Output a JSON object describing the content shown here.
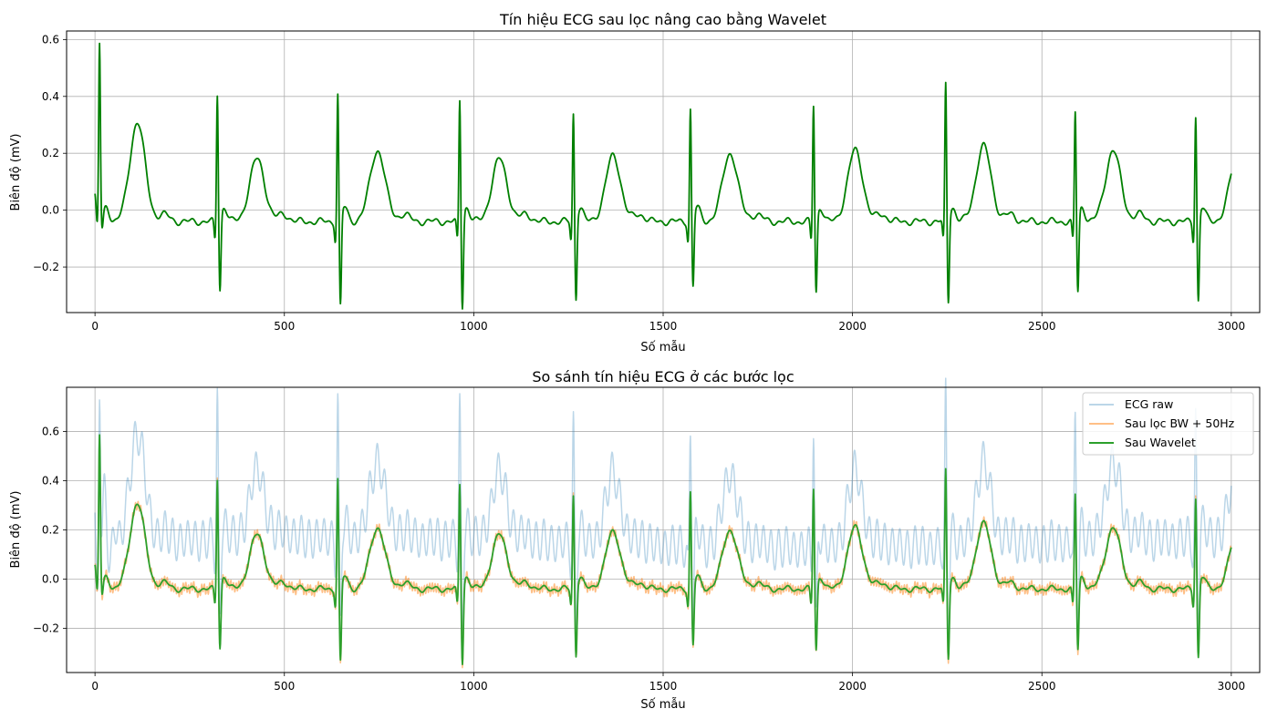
{
  "chart_data": [
    {
      "type": "line",
      "title": "Tín hiệu ECG sau lọc nâng cao bằng Wavelet",
      "xlabel": "Số mẫu",
      "ylabel": "Biên độ (mV)",
      "xlim": [
        -75,
        3075
      ],
      "ylim": [
        -0.36,
        0.63
      ],
      "xticks": [
        0,
        500,
        1000,
        1500,
        2000,
        2500,
        3000
      ],
      "xtick_labels": [
        "0",
        "500",
        "1000",
        "1500",
        "2000",
        "2500",
        "3000"
      ],
      "yticks": [
        -0.2,
        0.0,
        0.2,
        0.4,
        0.6
      ],
      "ytick_labels": [
        "−0.2",
        "0.0",
        "0.2",
        "0.4",
        "0.6"
      ],
      "grid": true,
      "series": [
        {
          "color": "#008000",
          "beats": [
            {
              "r": 12,
              "rAmp": 0.585,
              "sAmp": -0.05,
              "tOff": 100,
              "tAmp": 0.31
            },
            {
              "r": 323,
              "rAmp": 0.415,
              "sAmp": -0.26,
              "tOff": 105,
              "tAmp": 0.18
            },
            {
              "r": 641,
              "rAmp": 0.415,
              "sAmp": -0.32,
              "tOff": 105,
              "tAmp": 0.21
            },
            {
              "r": 963,
              "rAmp": 0.395,
              "sAmp": -0.32,
              "tOff": 105,
              "tAmp": 0.18
            },
            {
              "r": 1263,
              "rAmp": 0.345,
              "sAmp": -0.29,
              "tOff": 105,
              "tAmp": 0.19
            },
            {
              "r": 1572,
              "rAmp": 0.36,
              "sAmp": -0.25,
              "tOff": 105,
              "tAmp": 0.2
            },
            {
              "r": 1897,
              "rAmp": 0.375,
              "sAmp": -0.27,
              "tOff": 110,
              "tAmp": 0.21
            },
            {
              "r": 2246,
              "rAmp": 0.45,
              "sAmp": -0.3,
              "tOff": 100,
              "tAmp": 0.225
            },
            {
              "r": 2588,
              "rAmp": 0.35,
              "sAmp": -0.27,
              "tOff": 100,
              "tAmp": 0.21
            },
            {
              "r": 2906,
              "rAmp": 0.34,
              "sAmp": -0.3,
              "tOff": 110,
              "tAmp": 0.19
            }
          ],
          "baseline": -0.04,
          "n_samples": 3000
        }
      ]
    },
    {
      "type": "line",
      "title": "So sánh tín hiệu ECG ở các bước lọc",
      "xlabel": "Số mẫu",
      "ylabel": "Biên độ (mV)",
      "xlim": [
        -75,
        3075
      ],
      "ylim": [
        -0.38,
        0.78
      ],
      "xticks": [
        0,
        500,
        1000,
        1500,
        2000,
        2500,
        3000
      ],
      "xtick_labels": [
        "0",
        "500",
        "1000",
        "1500",
        "2000",
        "2500",
        "3000"
      ],
      "yticks": [
        -0.2,
        0.0,
        0.2,
        0.4,
        0.6
      ],
      "ytick_labels": [
        "−0.2",
        "0.0",
        "0.2",
        "0.4",
        "0.6"
      ],
      "grid": true,
      "legend_position": "top-right",
      "series": [
        {
          "name": "ECG raw",
          "color": "#1f77b4",
          "alpha": 0.3,
          "offset": 0.22,
          "noise_amp": 0.075,
          "noise_period": 20
        },
        {
          "name": "Sau lọc BW + 50Hz",
          "color": "#ff7f0e",
          "alpha": 0.5,
          "offset": 0.0,
          "noise_amp": 0.018,
          "noise_period": 7
        },
        {
          "name": "Sau Wavelet",
          "color": "#2ca02c",
          "alpha": 1.0,
          "offset": 0.0,
          "noise_amp": 0.0,
          "noise_period": 0
        }
      ]
    }
  ]
}
